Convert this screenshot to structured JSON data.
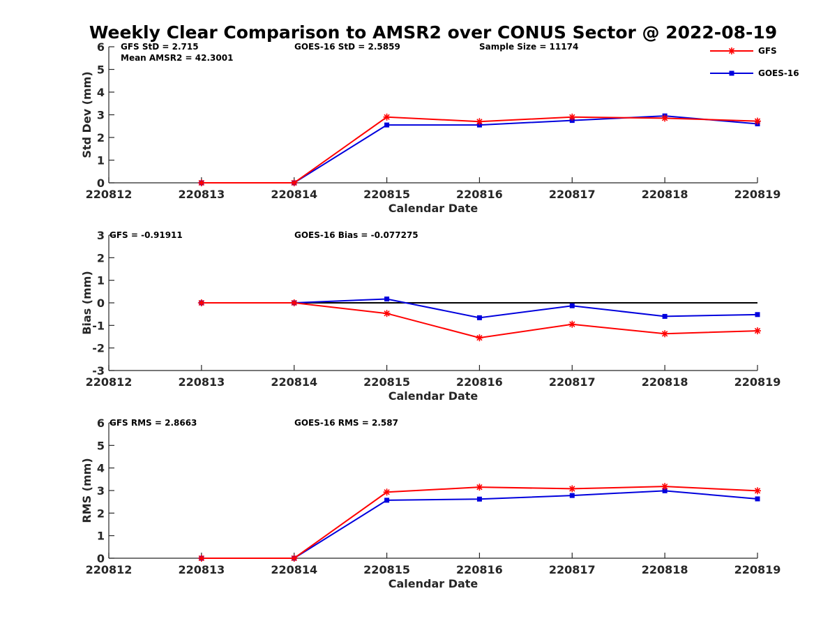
{
  "figure_title": "Weekly Clear Comparison to AMSR2 over CONUS Sector @ 2022-08-19",
  "colors": {
    "GFS": "#ff0000",
    "GOES-16": "#0000dd",
    "zero_line": "#000000"
  },
  "legend": {
    "placement": "top-right",
    "entries": [
      {
        "name": "GFS",
        "marker": "asterisk"
      },
      {
        "name": "GOES-16",
        "marker": "square"
      }
    ]
  },
  "chart_data": [
    {
      "type": "line",
      "categories": [
        "220812",
        "220813",
        "220814",
        "220815",
        "220816",
        "220817",
        "220818",
        "220819"
      ],
      "xlabel": "Calendar Date",
      "ylabel": "Std Dev (mm)",
      "ylim": [
        0,
        6
      ],
      "yticks": [
        "0",
        "1",
        "2",
        "3",
        "4",
        "5",
        "6"
      ],
      "annotations": [
        "GFS StD = 2.715",
        "Mean AMSR2 = 42.3001",
        "GOES-16 StD = 2.5859",
        "Sample Size = 11174"
      ],
      "series": [
        {
          "name": "GFS",
          "values": [
            null,
            0,
            0,
            2.9,
            2.7,
            2.9,
            2.85,
            2.72
          ]
        },
        {
          "name": "GOES-16",
          "values": [
            null,
            0,
            0,
            2.55,
            2.55,
            2.75,
            2.95,
            2.6
          ]
        }
      ]
    },
    {
      "type": "line",
      "categories": [
        "220812",
        "220813",
        "220814",
        "220815",
        "220816",
        "220817",
        "220818",
        "220819"
      ],
      "xlabel": "Calendar Date",
      "ylabel": "Bias (mm)",
      "ylim": [
        -3,
        3
      ],
      "yticks": [
        "-3",
        "-2",
        "-1",
        "0",
        "1",
        "2",
        "3"
      ],
      "annotations": [
        "GFS = -0.91911",
        "GOES-16 Bias  = -0.077275"
      ],
      "reference_line": 0,
      "series": [
        {
          "name": "GFS",
          "values": [
            null,
            0,
            0,
            -0.47,
            -1.55,
            -0.95,
            -1.37,
            -1.24
          ]
        },
        {
          "name": "GOES-16",
          "values": [
            null,
            0,
            0,
            0.17,
            -0.66,
            -0.13,
            -0.6,
            -0.52
          ]
        }
      ]
    },
    {
      "type": "line",
      "categories": [
        "220812",
        "220813",
        "220814",
        "220815",
        "220816",
        "220817",
        "220818",
        "220819"
      ],
      "xlabel": "Calendar Date",
      "ylabel": "RMS (mm)",
      "ylim": [
        0,
        6
      ],
      "yticks": [
        "0",
        "1",
        "2",
        "3",
        "4",
        "5",
        "6"
      ],
      "annotations": [
        "GFS RMS = 2.8663",
        "GOES-16 RMS = 2.587"
      ],
      "series": [
        {
          "name": "GFS",
          "values": [
            null,
            0,
            0,
            2.93,
            3.15,
            3.08,
            3.18,
            2.99
          ]
        },
        {
          "name": "GOES-16",
          "values": [
            null,
            0,
            0,
            2.57,
            2.62,
            2.78,
            2.99,
            2.63
          ]
        }
      ]
    }
  ]
}
